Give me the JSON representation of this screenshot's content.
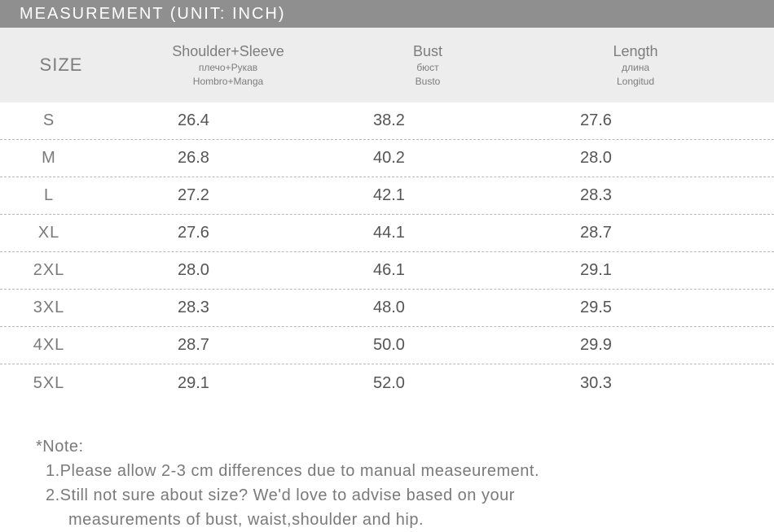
{
  "colors": {
    "title_bar_bg": "#8f8f8f",
    "title_bar_text": "#ffffff",
    "header_row_bg": "#ededed",
    "header_text": "#7d7d7d",
    "body_text": "#555555",
    "size_label_text": "#7a7a7a",
    "row_divider": "#b8b8b8",
    "note_text": "#7a7a7a",
    "page_bg": "#ffffff"
  },
  "title": "MEASUREMENT (UNIT: INCH)",
  "header": {
    "size_label": "SIZE",
    "cols": [
      {
        "main": "Shoulder+Sleeve",
        "sub1": "плечо+Рукав",
        "sub2": "Hombro+Manga"
      },
      {
        "main": "Bust",
        "sub1": "бюст",
        "sub2": "Busto"
      },
      {
        "main": "Length",
        "sub1": "длина",
        "sub2": "Longitud"
      }
    ]
  },
  "rows": [
    {
      "size": "S",
      "a": "26.4",
      "b": "38.2",
      "c": "27.6"
    },
    {
      "size": "M",
      "a": "26.8",
      "b": "40.2",
      "c": "28.0"
    },
    {
      "size": "L",
      "a": "27.2",
      "b": "42.1",
      "c": "28.3"
    },
    {
      "size": "XL",
      "a": "27.6",
      "b": "44.1",
      "c": "28.7"
    },
    {
      "size": "2XL",
      "a": "28.0",
      "b": "46.1",
      "c": "29.1"
    },
    {
      "size": "3XL",
      "a": "28.3",
      "b": "48.0",
      "c": "29.5"
    },
    {
      "size": "4XL",
      "a": "28.7",
      "b": "50.0",
      "c": "29.9"
    },
    {
      "size": "5XL",
      "a": "29.1",
      "b": "52.0",
      "c": "30.3"
    }
  ],
  "notes": {
    "label": "*Note:",
    "line1": "1.Please allow 2-3 cm differences due to manual measeurement.",
    "line2": "2.Still not sure about size? We'd love to advise based on your",
    "line2_cont": "measurements of bust, waist,shoulder and hip."
  }
}
